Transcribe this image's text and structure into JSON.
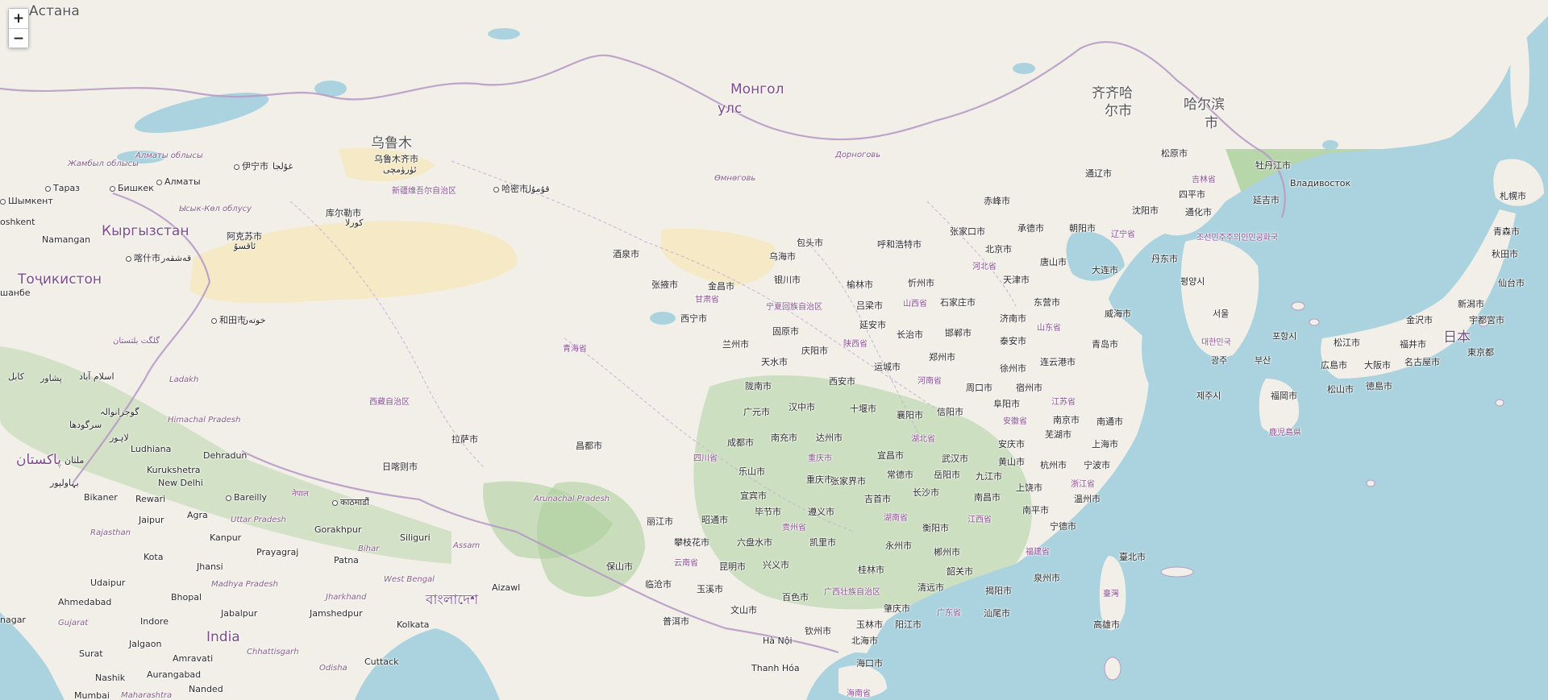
{
  "zoom": {
    "in_label": "+",
    "out_label": "−"
  },
  "colors": {
    "land": "#f2efe9",
    "water": "#aad3df",
    "forest": "#add19e",
    "desert": "#f5e9c6",
    "border": "#b79bc4",
    "province_text": "#8a4e8e"
  },
  "labels": {
    "astana": "Астана",
    "urumqi_big": "乌鲁木",
    "urumqi": "乌鲁木齐市",
    "urumqi_ug": "ئۈرۈمچى",
    "xinjiang": "新疆维吾尔自治区",
    "yining": "伊宁市",
    "yining_ug": "غۇلجا",
    "hami": "哈密市",
    "hami_ug": "قۇمۇل",
    "korla": "库尔勒市",
    "korla_ug": "كورلا",
    "aksu": "阿克苏市",
    "aksu_ug": "ئاقسۇ",
    "kashgar": "喀什市",
    "kashgar_ug": "قەشقەر",
    "hotan": "和田市",
    "hotan_ug": "خوتەن",
    "mongol1": "Монгол",
    "mongol2": "улс",
    "dornogovi": "Дорноговь",
    "omnogovi": "Өмнөговь",
    "qiqihar1": "齐齐哈",
    "qiqihar2": "尔市",
    "harbin1": "哈尔滨",
    "harbin2": "市",
    "songyuan": "松原市",
    "tongliao": "通辽市",
    "mudanjiang": "牡丹江市",
    "vladivostok": "Владивосток",
    "jilin": "吉林省",
    "yanji": "延吉市",
    "siping": "四平市",
    "tonghua": "通化市",
    "shenyang": "沈阳市",
    "chifeng": "赤峰市",
    "zhangjiakou": "张家口市",
    "chengde": "承德市",
    "chaoyang": "朝阳市",
    "liaoning": "辽宁省",
    "dandong": "丹东市",
    "dalian": "大连市",
    "beijing": "北京市",
    "tangshan": "唐山市",
    "tianjin": "天津市",
    "hebei": "河北省",
    "baotou": "包头市",
    "hohhot": "呼和浩特市",
    "wuhai": "乌海市",
    "jiuquan": "酒泉市",
    "zhangye": "张掖市",
    "jinchang": "金昌市",
    "gansu": "甘肃省",
    "yinchuan": "银川市",
    "ningxia": "宁夏回族自治区",
    "yulin_sx": "榆林市",
    "xinzhou": "忻州市",
    "lvliang": "吕梁市",
    "shanxi": "山西省",
    "shijiazhuang": "石家庄市",
    "dongying": "东营市",
    "weihai": "威海市",
    "xining": "西宁市",
    "guyuan": "固原市",
    "yanan": "延安市",
    "jinan": "济南市",
    "shandong": "山东省",
    "changzhi": "长治市",
    "handan": "邯郸市",
    "taian": "泰安市",
    "qingdao": "青岛市",
    "qinghai": "青海省",
    "lanzhou": "兰州市",
    "qingyang": "庆阳市",
    "shaanxi": "陕西省",
    "zhengzhou": "郑州市",
    "tianshui": "天水市",
    "yuncheng": "运城市",
    "xuzhou": "徐州市",
    "lianyungang": "连云港市",
    "xian": "西安市",
    "henan": "河南省",
    "longnan": "陇南市",
    "zhoukou": "周口市",
    "suzhou_ah": "宿州市",
    "xizang": "西藏自治区",
    "guangyuan": "广元市",
    "hanzhong": "汉中市",
    "shiyan": "十堰市",
    "xiangyang": "襄阳市",
    "xinyang": "信阳市",
    "fuyang": "阜阳市",
    "jiangsu": "江苏省",
    "anhui": "安徽省",
    "nanjing": "南京市",
    "nantong": "南通市",
    "lhasa": "拉萨市",
    "changdu": "昌都市",
    "chengdu": "成都市",
    "nanchong": "南充市",
    "dazhou": "达州市",
    "hubei": "湖北省",
    "wuhu": "芜湖市",
    "shanghai": "上海市",
    "anqing": "安庆市",
    "sichuan": "四川省",
    "chongqing_prov": "重庆市",
    "yichang": "宜昌市",
    "wuhan": "武汉市",
    "huangshan": "黄山市",
    "hangzhou": "杭州市",
    "ningbo": "宁波市",
    "shigatse": "日喀则市",
    "leshan": "乐山市",
    "chongqing": "重庆市",
    "zhangjiajie": "张家界市",
    "changde": "常德市",
    "yueyang": "岳阳市",
    "jiujiang": "九江市",
    "changsha": "长沙市",
    "shangrao": "上饶市",
    "zhejiang": "浙江省",
    "yibin": "宜宾市",
    "jishou": "吉首市",
    "nanchang": "南昌市",
    "wenzhou": "温州市",
    "bijie": "毕节市",
    "zunyi": "遵义市",
    "nanping": "南平市",
    "lijiang": "丽江市",
    "zhaotong": "昭通市",
    "guizhou": "贵州省",
    "hunan": "湖南省",
    "hengyang": "衡阳市",
    "jiangxi": "江西省",
    "ningde": "宁德市",
    "panzhihua": "攀枝花市",
    "liupanshui": "六盘水市",
    "kaili": "凯里市",
    "yongzhou": "永州市",
    "chenzhou": "郴州市",
    "fujian": "福建省",
    "taibei": "臺北市",
    "baoshan": "保山市",
    "yunnan": "云南省",
    "kunming": "昆明市",
    "xingyi": "兴义市",
    "guilin": "桂林市",
    "shaoguan": "韶关市",
    "quanzhou": "泉州市",
    "lincang": "临沧市",
    "guangxi": "广西壮族自治区",
    "qingyuan": "清远市",
    "jieyang": "揭阳市",
    "taiwan": "臺灣",
    "yuxi": "玉溪市",
    "baise": "百色市",
    "zhaoqing": "肇庆市",
    "wenshan": "文山市",
    "guangdong": "广东省",
    "shantou": "汕尾市",
    "puer": "普洱市",
    "yulin_gx": "玉林市",
    "yangjiang": "阳江市",
    "gaoxiong": "高雄市",
    "qinzhou": "钦州市",
    "beihai": "北海市",
    "hanoi": "Hà Nội",
    "haikou": "海口市",
    "thanhhoa": "Thanh Hóa",
    "hainan": "海南省",
    "daegu_kr": "대한민국",
    "pyongyang": "평양시",
    "dprk": "조선민주주의인민공화국",
    "seoul": "서울",
    "busan": "부산",
    "gwangju": "광주",
    "pohang": "포항시",
    "jeju": "제주시",
    "sapporo": "札幌市",
    "aomori": "青森市",
    "akita": "秋田市",
    "sendai": "仙台市",
    "niigata": "新潟市",
    "kanazawa": "金沢市",
    "utsunomiya": "宇都宮市",
    "fukui": "福井市",
    "japan": "日本",
    "matsue": "松江市",
    "tokyo": "東京都",
    "hiroshima": "広島市",
    "osaka": "大阪市",
    "nagoya": "名古屋市",
    "fukuoka": "福岡市",
    "matsuyama": "松山市",
    "tokushima": "徳島市",
    "kagoshima": "鹿児島県",
    "zhambyl": "Жамбыл облысы",
    "almaty_obl": "Алматы облысы",
    "taraz": "Тараз",
    "bishkek": "Бишкек",
    "almaty": "Алматы",
    "shymkent": "Шымкент",
    "issyk": "Ысык-Көл облусу",
    "kyrgyzstan": "Кыргызстан",
    "tashkent": "oshkent",
    "namangan": "Namangan",
    "tajikistan": "Тоҷикистон",
    "dushanbe": "шанбе",
    "gilgit": "گلگت بلتستان",
    "kabul": "کابل",
    "peshawar": "پشاور",
    "islamabad": "اسلام آباد",
    "ladakh": "Ladakh",
    "gujranwala": "گوجرانوالہ",
    "sargodha": "سرگودھا",
    "lahore": "لاہور",
    "himachal": "Himachal Pradesh",
    "pakistan": "پاکستان",
    "multan": "ملتان",
    "ludhiana": "Ludhiana",
    "dehradun": "Dehradun",
    "kurukshetra": "Kurukshetra",
    "bahawalpur": "بہاولپور",
    "new_delhi": "New Delhi",
    "bareilly": "Bareilly",
    "nepal": "नेपाल",
    "kathmandu": "काठमाडौं",
    "bikaner": "Bikaner",
    "rewari": "Rewari",
    "jaipur": "Jaipur",
    "agra": "Agra",
    "uttar_pradesh": "Uttar Pradesh",
    "rajasthan": "Rajasthan",
    "kanpur": "Kanpur",
    "gorakhpur": "Gorakhpur",
    "siliguri": "Siliguri",
    "arunachal": "Arunachal Pradesh",
    "assam": "Assam",
    "bihar": "Bihar",
    "prayagraj": "Prayagraj",
    "patna": "Patna",
    "kota": "Kota",
    "jhansi": "Jhansi",
    "west_bengal": "West Bengal",
    "udaipur": "Udaipur",
    "madhya_pradesh": "Madhya Pradesh",
    "jharkhand": "Jharkhand",
    "ahmedabad": "Ahmedabad",
    "bhopal": "Bhopal",
    "aizawl": "Aizawl",
    "gujarat": "Gujarat",
    "indore": "Indore",
    "jabalpur": "Jabalpur",
    "jamshedpur": "Jamshedpur",
    "kolkata": "Kolkata",
    "india": "India",
    "jalgaon": "Jalgaon",
    "chhattisgarh": "Chhattisgarh",
    "surat": "Surat",
    "amravati": "Amravati",
    "odisha": "Odisha",
    "cuttack": "Cuttack",
    "nashik": "Nashik",
    "aurangabad": "Aurangabad",
    "nanded": "Nanded",
    "mumbai": "Mumbai",
    "maharashtra": "Maharashtra",
    "bangladesh": "বাংলাদেশ",
    "nagar": "nagar"
  }
}
